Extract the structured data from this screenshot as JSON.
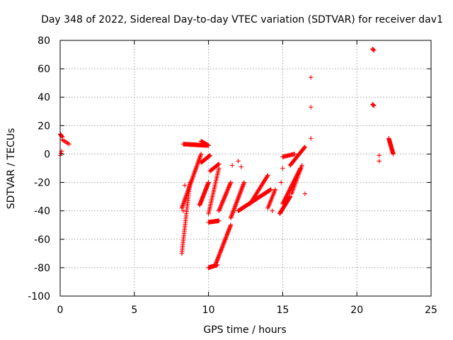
{
  "chart_data": {
    "type": "scatter",
    "title": "Day 348 of 2022, Sidereal Day-to-day VTEC variation (SDTVAR) for receiver dav1",
    "xlabel": "GPS time / hours",
    "ylabel": "SDTVAR / TECUs",
    "xlim": [
      0,
      25
    ],
    "ylim": [
      -100,
      80
    ],
    "xticks": [
      0,
      5,
      10,
      15,
      20,
      25
    ],
    "yticks": [
      -100,
      -80,
      -60,
      -40,
      -20,
      0,
      20,
      40,
      60,
      80
    ],
    "grid": true,
    "marker": "plus",
    "color": "#ff0000",
    "segments": [
      {
        "x0": 0.0,
        "x1": 0.15,
        "y0": 14,
        "y1": 12,
        "n": 6
      },
      {
        "x0": 0.0,
        "x1": 0.1,
        "y0": -1,
        "y1": 2,
        "n": 3
      },
      {
        "x0": 0.15,
        "x1": 0.6,
        "y0": 10,
        "y1": 7,
        "n": 6
      },
      {
        "x0": 8.2,
        "x1": 8.75,
        "y0": -70,
        "y1": -20,
        "n": 40
      },
      {
        "x0": 8.2,
        "x1": 9.5,
        "y0": -38,
        "y1": 0,
        "n": 50
      },
      {
        "x0": 8.3,
        "x1": 9.9,
        "y0": 7,
        "y1": 6,
        "n": 40
      },
      {
        "x0": 9.5,
        "x1": 10.0,
        "y0": 9,
        "y1": 6,
        "n": 15
      },
      {
        "x0": 9.4,
        "x1": 10.0,
        "y0": -36,
        "y1": -20,
        "n": 30
      },
      {
        "x0": 9.5,
        "x1": 10.1,
        "y0": -6,
        "y1": -1,
        "n": 25
      },
      {
        "x0": 10.0,
        "x1": 10.6,
        "y0": -80,
        "y1": -78,
        "n": 25
      },
      {
        "x0": 10.5,
        "x1": 11.5,
        "y0": -77,
        "y1": -50,
        "n": 40
      },
      {
        "x0": 10.0,
        "x1": 10.7,
        "y0": -48,
        "y1": -47,
        "n": 20
      },
      {
        "x0": 10.0,
        "x1": 10.7,
        "y0": -42,
        "y1": -10,
        "n": 30
      },
      {
        "x0": 10.1,
        "x1": 10.7,
        "y0": -12,
        "y1": -7,
        "n": 15
      },
      {
        "x0": 10.7,
        "x1": 11.5,
        "y0": -40,
        "y1": -20,
        "n": 30
      },
      {
        "x0": 11.5,
        "x1": 12.4,
        "y0": -45,
        "y1": -20,
        "n": 35
      },
      {
        "x0": 12.0,
        "x1": 14.2,
        "y0": -40,
        "y1": -25,
        "n": 70
      },
      {
        "x0": 12.8,
        "x1": 14.0,
        "y0": -35,
        "y1": -15,
        "n": 30
      },
      {
        "x0": 14.0,
        "x1": 14.5,
        "y0": -38,
        "y1": -25,
        "n": 15
      },
      {
        "x0": 14.8,
        "x1": 15.5,
        "y0": -42,
        "y1": -30,
        "n": 30
      },
      {
        "x0": 15.0,
        "x1": 16.2,
        "y0": -35,
        "y1": -10,
        "n": 40
      },
      {
        "x0": 15.0,
        "x1": 15.8,
        "y0": -2,
        "y1": 0,
        "n": 15
      },
      {
        "x0": 15.5,
        "x1": 16.5,
        "y0": -8,
        "y1": 5,
        "n": 30
      },
      {
        "x0": 15.6,
        "x1": 16.3,
        "y0": -28,
        "y1": -8,
        "n": 20
      },
      {
        "x0": 21.05,
        "x1": 21.15,
        "y0": 74,
        "y1": 73,
        "n": 4
      },
      {
        "x0": 21.05,
        "x1": 21.15,
        "y0": 35,
        "y1": 34,
        "n": 4
      },
      {
        "x0": 22.15,
        "x1": 22.45,
        "y0": 11,
        "y1": 0,
        "n": 25
      }
    ],
    "points": [
      [
        8.3,
        -40
      ],
      [
        8.4,
        -22
      ],
      [
        11.6,
        -8
      ],
      [
        12.2,
        -9
      ],
      [
        12.0,
        -5
      ],
      [
        14.3,
        -40
      ],
      [
        14.9,
        -20
      ],
      [
        15.0,
        -10
      ],
      [
        16.5,
        -28
      ],
      [
        16.9,
        54
      ],
      [
        16.9,
        33
      ],
      [
        16.9,
        11
      ],
      [
        21.5,
        -1
      ],
      [
        21.5,
        -5
      ]
    ]
  }
}
